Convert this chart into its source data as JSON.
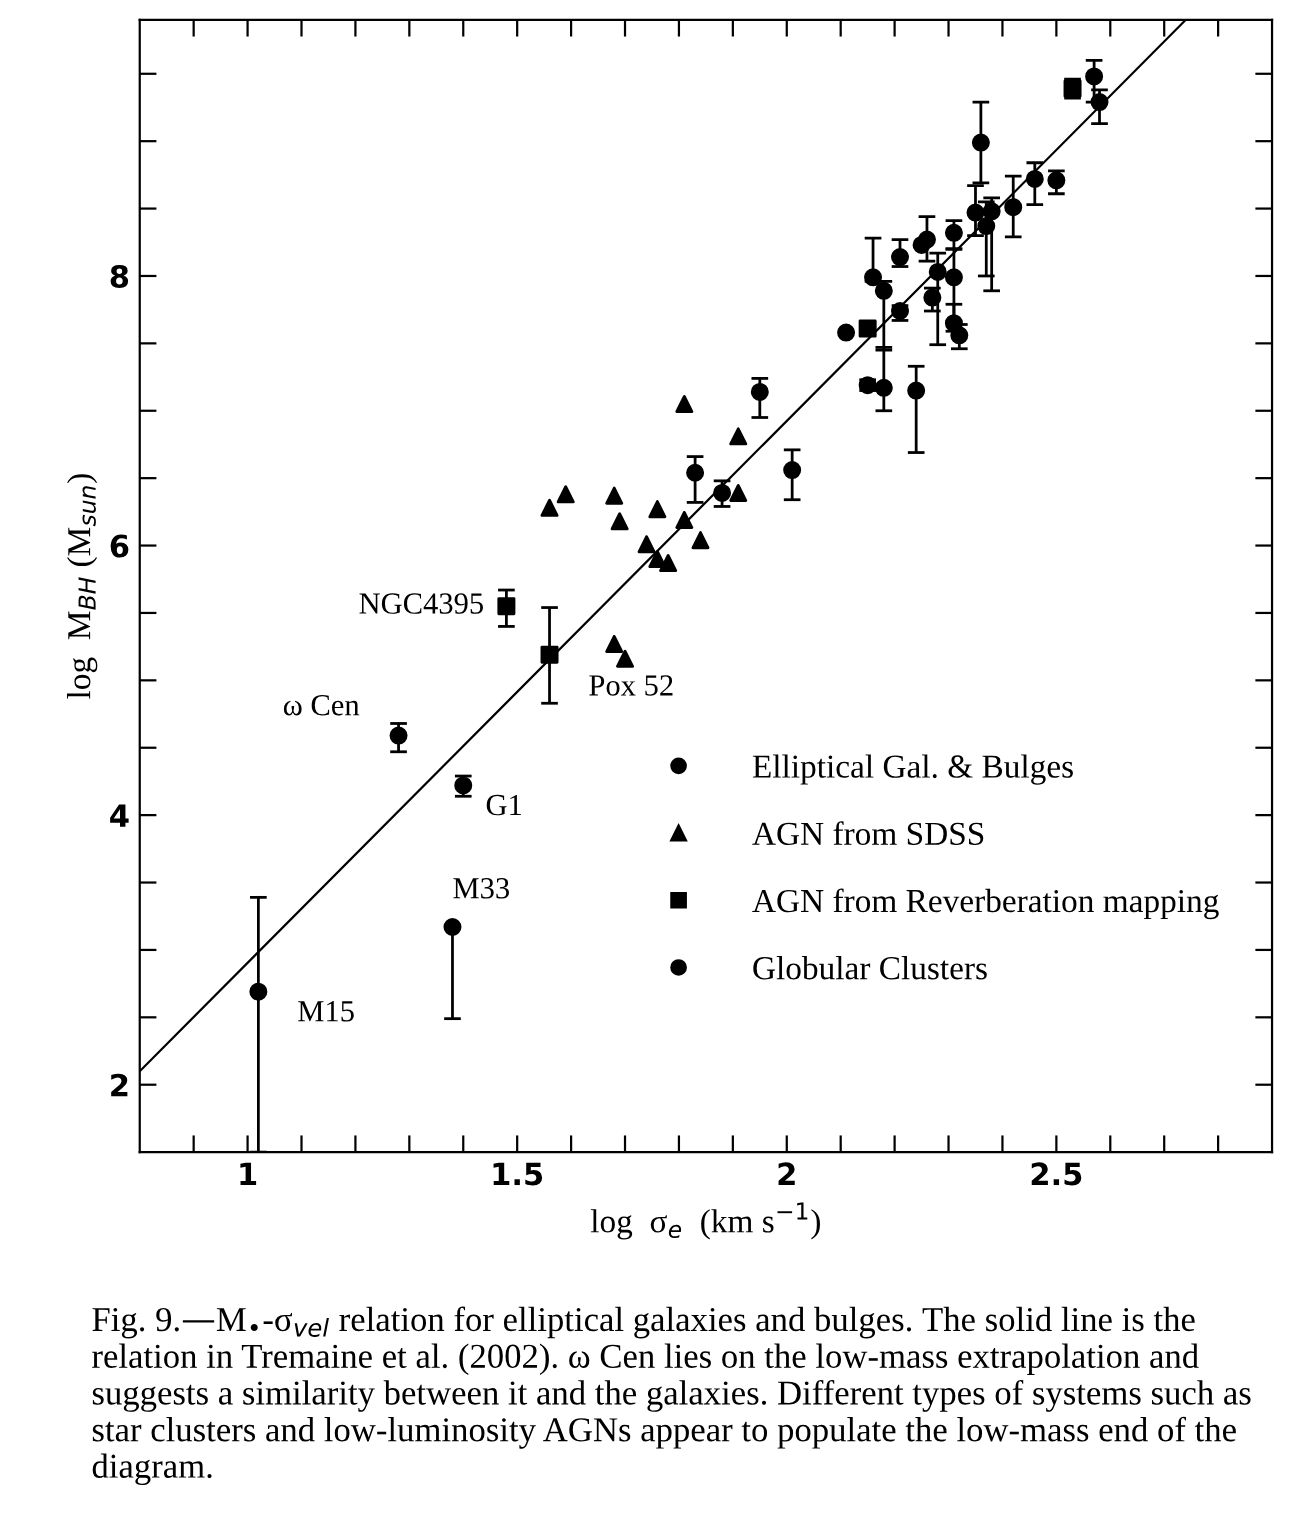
{
  "chart_data": {
    "type": "scatter",
    "xlabel": "log  σ$_{e}$  (km s$^{−1}$)",
    "ylabel": "log  M$_{BH}$ (M$_{sun}$)",
    "xlim": [
      0.8,
      2.9
    ],
    "ylim": [
      1.5,
      9.9
    ],
    "xticks": [
      {
        "value": 0.9,
        "label": null
      },
      1,
      {
        "value": 1.1,
        "label": null
      },
      {
        "value": 1.2,
        "label": null
      },
      {
        "value": 1.3,
        "label": null
      },
      {
        "value": 1.4,
        "label": null
      },
      1.5,
      {
        "value": 1.6,
        "label": null
      },
      {
        "value": 1.7,
        "label": null
      },
      {
        "value": 1.8,
        "label": null
      },
      {
        "value": 1.9,
        "label": null
      },
      2,
      {
        "value": 2.1,
        "label": null
      },
      {
        "value": 2.2,
        "label": null
      },
      {
        "value": 2.3,
        "label": null
      },
      {
        "value": 2.4,
        "label": null
      },
      2.5,
      {
        "value": 2.6,
        "label": null
      },
      {
        "value": 2.7,
        "label": null
      },
      {
        "value": 2.8,
        "label": null
      }
    ],
    "yticks": [
      2,
      {
        "value": 2.5,
        "label": null
      },
      {
        "value": 3,
        "label": null
      },
      {
        "value": 3.5,
        "label": null
      },
      4,
      {
        "value": 4.5,
        "label": null
      },
      {
        "value": 5,
        "label": null
      },
      {
        "value": 5.5,
        "label": null
      },
      6,
      {
        "value": 6.5,
        "label": null
      },
      {
        "value": 7,
        "label": null
      },
      {
        "value": 7.5,
        "label": null
      },
      8,
      {
        "value": 8.5,
        "label": null
      },
      {
        "value": 9,
        "label": null
      },
      {
        "value": 9.5,
        "label": null
      }
    ],
    "grid": false,
    "legend": "lower right",
    "series": [
      {
        "name": "Elliptical Gal. & Bulges",
        "marker": "circle",
        "color": "#000000",
        "x": [
          2.57,
          2.58,
          2.36,
          2.46,
          2.5,
          2.42,
          2.35,
          2.37,
          2.38,
          2.31,
          2.26,
          2.25,
          2.21,
          2.16,
          2.18,
          2.28,
          2.31,
          2.27,
          2.21,
          2.11,
          2.31,
          2.32,
          2.15,
          2.18,
          2.24,
          1.95,
          2.01,
          1.88,
          1.83,
          1.38
        ],
        "values": [
          9.48,
          9.29,
          8.99,
          8.72,
          8.71,
          8.51,
          8.47,
          8.37,
          8.48,
          8.32,
          8.27,
          8.23,
          8.14,
          7.99,
          7.89,
          8.03,
          7.99,
          7.84,
          7.74,
          7.58,
          7.65,
          7.56,
          7.19,
          7.17,
          7.15,
          7.14,
          6.56,
          6.39,
          6.54,
          3.17
        ],
        "errors": [
          [
            9.29,
            9.6
          ],
          [
            9.13,
            9.38
          ],
          [
            8.69,
            9.29
          ],
          [
            8.53,
            8.84
          ],
          [
            8.61,
            8.78
          ],
          [
            8.29,
            8.74
          ],
          [
            8.3,
            8.67
          ],
          [
            8.0,
            8.55
          ],
          [
            7.89,
            8.58
          ],
          [
            8.2,
            8.41
          ],
          [
            8.11,
            8.44
          ],
          null,
          [
            8.07,
            8.27
          ],
          [
            7.96,
            8.28
          ],
          [
            7.45,
            7.96
          ],
          [
            7.49,
            8.17
          ],
          [
            7.66,
            8.2
          ],
          [
            7.74,
            7.91
          ],
          [
            7.67,
            7.78
          ],
          null,
          [
            7.59,
            7.79
          ],
          [
            7.46,
            7.64
          ],
          [
            7.15,
            7.23
          ],
          [
            7.0,
            7.47
          ],
          [
            6.69,
            7.33
          ],
          [
            6.95,
            7.24
          ],
          [
            6.34,
            6.71
          ],
          [
            6.29,
            6.48
          ],
          [
            6.32,
            6.66
          ],
          [
            2.49,
            3.17
          ]
        ]
      },
      {
        "name": "AGN from SDSS",
        "marker": "triangle",
        "color": "#000000",
        "x": [
          1.56,
          1.59,
          1.68,
          1.69,
          1.76,
          1.74,
          1.76,
          1.78,
          1.81,
          1.84,
          1.91,
          1.91,
          1.81,
          1.68,
          1.7
        ],
        "values": [
          6.28,
          6.38,
          6.37,
          6.18,
          6.27,
          6.01,
          5.9,
          5.87,
          6.19,
          6.04,
          6.81,
          6.39,
          7.05,
          5.27,
          5.16
        ]
      },
      {
        "name": "AGN from Reverberation mapping",
        "marker": "square",
        "color": "#000000",
        "x": [
          2.53,
          2.15,
          1.48,
          1.56
        ],
        "values": [
          9.39,
          7.61,
          5.55,
          5.19
        ],
        "errors": [
          [
            9.32,
            9.46
          ],
          [
            7.56,
            7.65
          ],
          [
            5.4,
            5.67
          ],
          [
            4.83,
            5.54
          ]
        ]
      },
      {
        "name": "Globular Clusters",
        "marker": "circle",
        "color": "#000000",
        "x": [
          1.28,
          1.4,
          1.02
        ],
        "values": [
          4.59,
          4.22,
          2.69
        ],
        "errors": [
          [
            4.47,
            4.68
          ],
          [
            4.14,
            4.29
          ],
          [
            1.5,
            3.39
          ]
        ]
      },
      {
        "type": "line",
        "color": "#000000",
        "x": [
          0.8,
          2.74
        ],
        "values": [
          2.1,
          9.9
        ]
      }
    ],
    "annotations": [
      {
        "text": "NGC4395",
        "x": 1.48,
        "y": 5.55
      },
      {
        "text": "Pox 52",
        "x": 1.56,
        "y": 5.19
      },
      {
        "text": "ω Cen",
        "x": 1.28,
        "y": 4.59
      },
      {
        "text": "G1",
        "x": 1.4,
        "y": 4.22
      },
      {
        "text": "M33",
        "x": 1.38,
        "y": 3.17
      },
      {
        "text": "M15",
        "x": 1.02,
        "y": 2.69
      },
      "Fig. 9.—M$_{•}$-σ$_{vel}$ relation for elliptical galaxies and bulges. The solid line is the relation in Tremaine et al. (2002). ω Cen lies on the low-mass extrapolation and suggests a similarity between it and the galaxies. Different types of systems such as star clusters and low-luminosity AGNs appear to populate the low-mass end of the diagram."
    ]
  }
}
